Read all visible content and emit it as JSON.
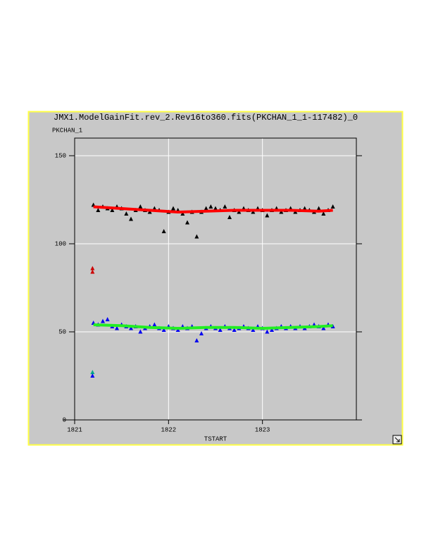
{
  "chart_data": {
    "type": "scatter",
    "title": "JMX1.ModelGainFit.rev_2.Rev16to360.fits(PKCHAN_1_1-117482)_0",
    "y_label": "PKCHAN_1",
    "x_label": "TSTART",
    "xlim": [
      1821,
      1824
    ],
    "ylim": [
      0,
      160
    ],
    "xticks": [
      1821,
      1822,
      1823
    ],
    "yticks": [
      0,
      50,
      100,
      150
    ],
    "grid": true,
    "marker": "triangle",
    "series": [
      {
        "kind": "markers",
        "color": "#000000",
        "x": [
          1821.2,
          1821.25,
          1821.3,
          1821.35,
          1821.4,
          1821.45,
          1821.5,
          1821.55,
          1821.6,
          1821.65,
          1821.7,
          1821.75,
          1821.8,
          1821.85,
          1821.9,
          1821.95,
          1822.0,
          1822.05,
          1822.1,
          1822.15,
          1822.2,
          1822.25,
          1822.3,
          1822.35,
          1822.4,
          1822.45,
          1822.5,
          1822.55,
          1822.6,
          1822.65,
          1822.7,
          1822.75,
          1822.8,
          1822.85,
          1822.9,
          1822.95,
          1823.0,
          1823.05,
          1823.1,
          1823.15,
          1823.2,
          1823.25,
          1823.3,
          1823.35,
          1823.4,
          1823.45,
          1823.5,
          1823.55,
          1823.6,
          1823.65,
          1823.7,
          1823.75
        ],
        "values": [
          122,
          119,
          121,
          120,
          119,
          121,
          120,
          117,
          114,
          119,
          121,
          119,
          118,
          120,
          119,
          107,
          118,
          120,
          119,
          117,
          112,
          118,
          104,
          118,
          120,
          121,
          120,
          119,
          121,
          115,
          119,
          118,
          120,
          119,
          118,
          120,
          119,
          116,
          119,
          120,
          118,
          119,
          120,
          118,
          119,
          120,
          119,
          118,
          120,
          117,
          119,
          121
        ]
      },
      {
        "kind": "markers",
        "color": "#0000ee",
        "x": [
          1821.2,
          1821.25,
          1821.3,
          1821.35,
          1821.4,
          1821.45,
          1821.5,
          1821.55,
          1821.6,
          1821.65,
          1821.7,
          1821.75,
          1821.8,
          1821.85,
          1821.9,
          1821.95,
          1822.0,
          1822.05,
          1822.1,
          1822.15,
          1822.2,
          1822.25,
          1822.3,
          1822.35,
          1822.4,
          1822.45,
          1822.5,
          1822.55,
          1822.6,
          1822.65,
          1822.7,
          1822.75,
          1822.8,
          1822.85,
          1822.9,
          1822.95,
          1823.0,
          1823.05,
          1823.1,
          1823.15,
          1823.2,
          1823.25,
          1823.3,
          1823.35,
          1823.4,
          1823.45,
          1823.5,
          1823.55,
          1823.6,
          1823.65,
          1823.7,
          1823.75
        ],
        "values": [
          55,
          54,
          56,
          57,
          53,
          52,
          54,
          53,
          52,
          53,
          50,
          52,
          53,
          54,
          52,
          51,
          53,
          52,
          51,
          53,
          52,
          53,
          45,
          49,
          52,
          53,
          52,
          51,
          53,
          52,
          51,
          52,
          53,
          52,
          51,
          53,
          52,
          50,
          51,
          52,
          53,
          52,
          53,
          52,
          53,
          52,
          53,
          54,
          53,
          52,
          54,
          53
        ]
      },
      {
        "kind": "line",
        "color": "#ff0000",
        "x": [
          1821.2,
          1821.5,
          1821.8,
          1822.1,
          1822.4,
          1822.7,
          1823.0,
          1823.3,
          1823.6,
          1823.75
        ],
        "values": [
          121,
          120,
          119,
          118,
          118.5,
          119,
          119,
          119,
          118.5,
          119
        ]
      },
      {
        "kind": "line",
        "color": "#22ee22",
        "x": [
          1821.2,
          1821.5,
          1821.8,
          1822.1,
          1822.4,
          1822.7,
          1823.0,
          1823.3,
          1823.6,
          1823.75
        ],
        "values": [
          54,
          53.5,
          52.5,
          52,
          52.5,
          52.5,
          52,
          52.5,
          53,
          53.5
        ]
      },
      {
        "kind": "markers",
        "color": "#cc0000",
        "x": [
          1821.19,
          1821.19
        ],
        "values": [
          86,
          84
        ]
      },
      {
        "kind": "markers",
        "color": "#00aa88",
        "x": [
          1821.19
        ],
        "values": [
          27
        ]
      },
      {
        "kind": "markers",
        "color": "#0000ee",
        "x": [
          1821.19
        ],
        "values": [
          25
        ]
      }
    ]
  }
}
